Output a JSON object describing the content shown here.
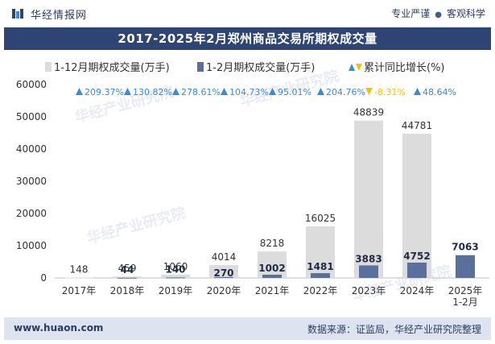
{
  "brand": {
    "name": "华经情报网",
    "tags": [
      "专业严谨",
      "客观科学"
    ]
  },
  "footer": {
    "website": "www.huaon.com",
    "source": "数据来源：证监局，华经产业研究院整理"
  },
  "watermark": "华经产业研究院",
  "colors": {
    "series1": "#dcdcdc",
    "series2": "#5a6f9c",
    "up": "#3a8bd6",
    "down": "#f2c200",
    "header": "#2e4574"
  },
  "chart_data": {
    "type": "bar",
    "title": "2017-2025年2月郑州商品交易所期权成交量",
    "categories": [
      "2017年",
      "2018年",
      "2019年",
      "2020年",
      "2021年",
      "2022年",
      "2023年",
      "2024年",
      "2025年\n1-2月"
    ],
    "series": [
      {
        "name": "1-12月期权成交量(万手)",
        "values": [
          148,
          459,
          1060,
          4014,
          8218,
          16025,
          48839,
          44781,
          null
        ]
      },
      {
        "name": "1-2月期权成交量(万手)",
        "values": [
          null,
          44,
          140,
          270,
          1002,
          1481,
          3883,
          4752,
          7063
        ]
      }
    ],
    "growth": {
      "name": "累计同比增长(%)",
      "values": [
        "209.37%",
        "130.82%",
        "278.61%",
        "104.73%",
        "95.01%",
        "204.76%",
        "-8.31%",
        "48.64%"
      ],
      "directions": [
        "up",
        "up",
        "up",
        "up",
        "up",
        "up",
        "down",
        "up"
      ]
    },
    "ylim": [
      0,
      60000
    ],
    "yticks": [
      0,
      10000,
      20000,
      30000,
      40000,
      50000,
      60000
    ],
    "xlabel": "",
    "ylabel": ""
  }
}
